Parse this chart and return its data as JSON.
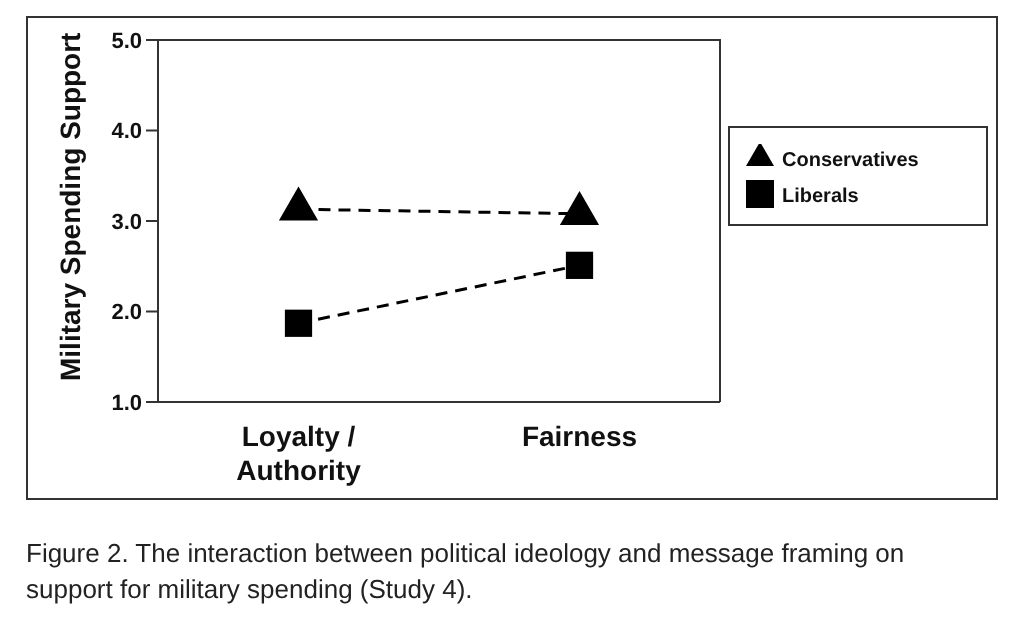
{
  "chart_data": {
    "type": "line",
    "categories": [
      "Loyalty / Authority",
      "Fairness"
    ],
    "ylabel": "Military Spending Support",
    "ylim": [
      1,
      5
    ],
    "yticks": [
      {
        "value": 1,
        "label": "1.0"
      },
      {
        "value": 2,
        "label": "2.0"
      },
      {
        "value": 3,
        "label": "3.0"
      },
      {
        "value": 4,
        "label": "4.0"
      },
      {
        "value": 5,
        "label": "5.0"
      }
    ],
    "series": [
      {
        "name": "Conservatives",
        "color": "#000000",
        "marker": "triangle",
        "values": [
          3.13,
          3.08
        ]
      },
      {
        "name": "Liberals",
        "color": "#000000",
        "marker": "square",
        "values": [
          1.87,
          2.51
        ]
      }
    ],
    "line_style": "dashed",
    "legend": "right",
    "annotations": [
      "Figure 2.  The interaction between political ideology and message framing on support for military spending (Study 4)."
    ]
  }
}
